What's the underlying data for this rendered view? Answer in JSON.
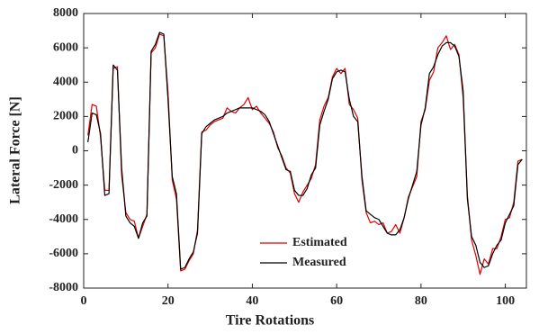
{
  "chart_data": {
    "type": "line",
    "xlabel": "Tire Rotations",
    "ylabel": "Lateral Force [N]",
    "x": [
      1,
      2,
      3,
      4,
      5,
      6,
      7,
      8,
      9,
      10,
      11,
      12,
      13,
      14,
      15,
      16,
      17,
      18,
      19,
      20,
      21,
      22,
      23,
      24,
      25,
      26,
      27,
      28,
      29,
      30,
      31,
      32,
      33,
      34,
      35,
      36,
      37,
      38,
      39,
      40,
      41,
      42,
      43,
      44,
      45,
      46,
      47,
      48,
      49,
      50,
      51,
      52,
      53,
      54,
      55,
      56,
      57,
      58,
      59,
      60,
      61,
      62,
      63,
      64,
      65,
      66,
      67,
      68,
      69,
      70,
      71,
      72,
      73,
      74,
      75,
      76,
      77,
      78,
      79,
      80,
      81,
      82,
      83,
      84,
      85,
      86,
      87,
      88,
      89,
      90,
      91,
      92,
      93,
      94,
      95,
      96,
      97,
      98,
      99,
      100,
      101,
      102,
      103,
      104
    ],
    "series": [
      {
        "name": "Estimated",
        "color": "#e00000",
        "values": [
          900,
          2700,
          2600,
          800,
          -2300,
          -2300,
          4800,
          4900,
          -1400,
          -3600,
          -4000,
          -4100,
          -5100,
          -4400,
          -3700,
          5700,
          6000,
          6800,
          6700,
          3400,
          -1700,
          -2800,
          -7000,
          -6900,
          -6400,
          -6000,
          -4600,
          1100,
          1200,
          1500,
          1700,
          1800,
          1900,
          2500,
          2300,
          2200,
          2500,
          2700,
          3100,
          2400,
          2600,
          2200,
          1900,
          1600,
          1100,
          200,
          -300,
          -1000,
          -1300,
          -2500,
          -3000,
          -2400,
          -2000,
          -1600,
          -800,
          1800,
          2600,
          3100,
          4300,
          4800,
          4500,
          4800,
          2700,
          2400,
          1900,
          -1700,
          -3600,
          -4200,
          -4100,
          -4300,
          -4200,
          -4800,
          -4700,
          -4300,
          -4800,
          -3900,
          -2700,
          -2100,
          -1500,
          1700,
          2400,
          4100,
          4600,
          6000,
          6300,
          6700,
          5900,
          6200,
          5600,
          3100,
          -2600,
          -5200,
          -6100,
          -7200,
          -6300,
          -6600,
          -5700,
          -5700,
          -5000,
          -4000,
          -3900,
          -3000,
          -600,
          -500
        ]
      },
      {
        "name": "Measured",
        "color": "#000000",
        "values": [
          500,
          2200,
          2100,
          1000,
          -2600,
          -2500,
          5000,
          4700,
          -1000,
          -3800,
          -4200,
          -4400,
          -5100,
          -4200,
          -3800,
          5800,
          6200,
          6900,
          6800,
          3000,
          -1500,
          -2500,
          -6900,
          -6800,
          -6300,
          -5900,
          -4800,
          1000,
          1400,
          1600,
          1800,
          1900,
          2000,
          2200,
          2300,
          2400,
          2500,
          2500,
          2500,
          2500,
          2400,
          2300,
          2100,
          1700,
          1000,
          300,
          -400,
          -1100,
          -1200,
          -2300,
          -2600,
          -2600,
          -2200,
          -1400,
          -1000,
          1500,
          2300,
          3000,
          4200,
          4600,
          4700,
          4600,
          3000,
          2000,
          1700,
          -1500,
          -3500,
          -3700,
          -3900,
          -4000,
          -4400,
          -4800,
          -4900,
          -4900,
          -4600,
          -3900,
          -2800,
          -2000,
          -1200,
          1500,
          2500,
          4500,
          4900,
          5600,
          6100,
          6300,
          6300,
          6100,
          5500,
          3500,
          -2800,
          -5000,
          -5500,
          -6500,
          -6800,
          -6700,
          -6000,
          -5500,
          -5200,
          -4200,
          -3700,
          -3200,
          -800,
          -500
        ]
      }
    ],
    "xlim": [
      0,
      105
    ],
    "xticks": [
      0,
      20,
      40,
      60,
      80,
      100
    ],
    "ylim": [
      -8000,
      8000
    ],
    "yticks": [
      -8000,
      -6000,
      -4000,
      -2000,
      0,
      2000,
      4000,
      6000,
      8000
    ],
    "legend": "lower center"
  }
}
